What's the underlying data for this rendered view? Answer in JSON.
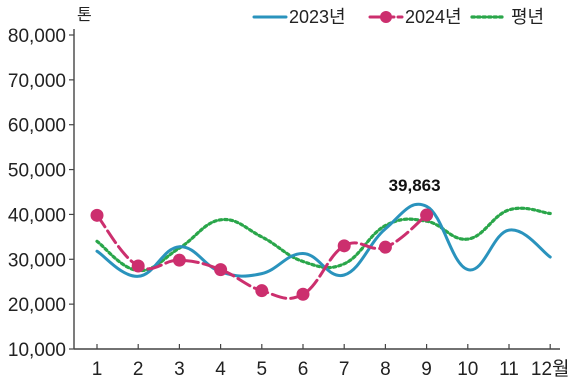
{
  "chart_data": {
    "type": "line",
    "unit_label": "톤",
    "ylim": [
      10000,
      80000
    ],
    "y_ticks": [
      10000,
      20000,
      30000,
      40000,
      50000,
      60000,
      70000,
      80000
    ],
    "y_tick_labels": [
      "10,000",
      "20,000",
      "30,000",
      "40,000",
      "50,000",
      "60,000",
      "70,000",
      "80,000"
    ],
    "categories": [
      "1",
      "2",
      "3",
      "4",
      "5",
      "6",
      "7",
      "8",
      "9",
      "10",
      "11",
      "12월"
    ],
    "grid": false,
    "legend_position": "top-right",
    "series": [
      {
        "name": "2023년",
        "color": "#2a93bd",
        "style": "solid",
        "marker": "none",
        "values": [
          31800,
          26200,
          32800,
          27200,
          26800,
          31300,
          26500,
          36800,
          41800,
          27700,
          36500,
          30500
        ]
      },
      {
        "name": "2024년",
        "color": "#cc2f6e",
        "style": "dashed",
        "marker": "circle",
        "values": [
          39800,
          28500,
          29800,
          27700,
          23000,
          22200,
          33000,
          32700,
          39863,
          null,
          null,
          null
        ]
      },
      {
        "name": "평년",
        "color": "#2aa64a",
        "style": "dotted",
        "marker": "none",
        "values": [
          34000,
          27500,
          32500,
          38800,
          35000,
          29500,
          29000,
          37500,
          38500,
          34500,
          41000,
          40200
        ]
      }
    ],
    "annotations": [
      {
        "text": "39,863",
        "series": 1,
        "index": 8
      }
    ]
  }
}
